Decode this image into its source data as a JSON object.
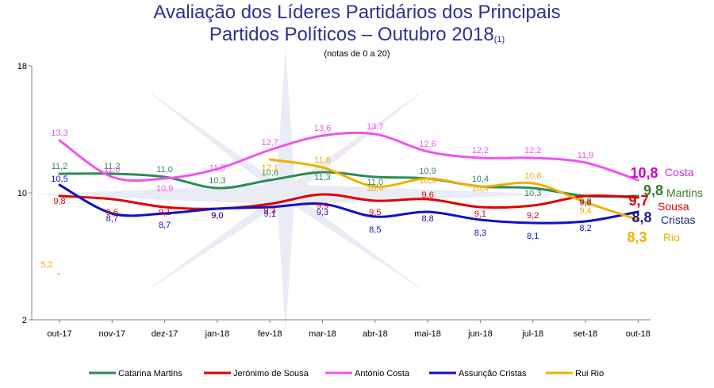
{
  "chart_data": {
    "type": "line",
    "title_line1": "Avaliação dos Líderes Partidários dos Principais",
    "title_line2": "Partidos Políticos – Outubro 2018",
    "title_note": "(1)",
    "subtitle": "(notas de 0 a 20)",
    "ylim": [
      2,
      18
    ],
    "yticks": [
      "2",
      "10",
      "18"
    ],
    "categories": [
      "out-17",
      "nov-17",
      "dez-17",
      "jan-18",
      "fev-18",
      "mar-18",
      "abr-18",
      "mai-18",
      "jun-18",
      "jul-18",
      "set-18",
      "out-18"
    ],
    "series": [
      {
        "name": "Catarina Martins",
        "short": "Martins",
        "color": "#2e8b57",
        "values": [
          11.2,
          11.2,
          11.0,
          10.3,
          10.8,
          11.3,
          11.0,
          10.9,
          10.4,
          10.3,
          9.8,
          9.8
        ],
        "labels": [
          "11,2",
          "11,2",
          "11,0",
          "10,3",
          "10,8",
          "11,3",
          "11,0",
          "10,9",
          "10,4",
          "10,3",
          "9,8",
          "9,8"
        ],
        "lbl_dy": [
          -6,
          -6,
          -6,
          0,
          -6,
          10,
          10,
          -6,
          -6,
          10,
          10,
          0
        ]
      },
      {
        "name": "Jerónimo de Sousa",
        "short": "Sousa",
        "color": "#e00000",
        "values": [
          9.8,
          9.6,
          9.1,
          9.0,
          9.3,
          9.9,
          9.5,
          9.6,
          9.1,
          9.2,
          9.8,
          9.7
        ],
        "labels": [
          "9,8",
          "9,6",
          "9,1",
          "9,0",
          "9,3",
          "9,9",
          "9,5",
          "9,6",
          "9,1",
          "9,2",
          "9,8",
          "9,7"
        ],
        "lbl_dy": [
          10,
          20,
          10,
          12,
          12,
          18,
          18,
          -2,
          12,
          16,
          12,
          0
        ]
      },
      {
        "name": "António Costa",
        "short": "Costa",
        "color": "#ee55ee",
        "values": [
          13.3,
          11.0,
          10.9,
          11.5,
          12.7,
          13.6,
          13.7,
          12.6,
          12.2,
          12.2,
          11.9,
          10.8
        ],
        "labels": [
          "13,3",
          "11,0",
          "10,9",
          "11,5",
          "12,7",
          "13,6",
          "13,7",
          "12,6",
          "12,2",
          "12,2",
          "11,9",
          "10,8"
        ],
        "lbl_dy": [
          -6,
          -6,
          16,
          2,
          -6,
          -6,
          -6,
          -6,
          -6,
          -6,
          -6,
          0
        ]
      },
      {
        "name": "Assunção Cristas",
        "short": "Cristas",
        "color": "#1010c8",
        "values": [
          10.5,
          8.7,
          8.7,
          9.0,
          9.1,
          9.3,
          8.5,
          8.8,
          8.3,
          8.1,
          8.2,
          8.8
        ],
        "labels": [
          "10,5",
          "8,7",
          "8,7",
          "9,0",
          "9,1",
          "9,3",
          "8,5",
          "8,8",
          "8,3",
          "8,1",
          "8,2",
          "8,8"
        ],
        "lbl_dy": [
          -4,
          10,
          18,
          12,
          12,
          14,
          20,
          12,
          20,
          20,
          12,
          0
        ]
      },
      {
        "name": "Rui Rio",
        "short": "Rio",
        "color": "#f0b000",
        "values": [
          null,
          null,
          null,
          null,
          12.1,
          11.6,
          10.4,
          10.9,
          10.4,
          10.6,
          9.4,
          8.3
        ],
        "labels": [
          "",
          "",
          "",
          "",
          "12,1",
          "11,6",
          "10,4",
          "10,9",
          "10,4",
          "10,6",
          "9,4",
          "8,3"
        ],
        "lbl_dy": [
          0,
          0,
          0,
          0,
          14,
          0,
          6,
          6,
          6,
          -6,
          14,
          0
        ],
        "isolated_point": {
          "value": 5.2,
          "label": "5,2"
        }
      }
    ],
    "end_labels": [
      {
        "value": "10,8",
        "name": "Costa"
      },
      {
        "value": "9,8",
        "name": "Martins"
      },
      {
        "value": "9,7",
        "name": "Sousa"
      },
      {
        "value": "8,8",
        "name": "Cristas"
      },
      {
        "value": "8,3",
        "name": "Rio"
      }
    ],
    "legend_position": "bottom"
  }
}
